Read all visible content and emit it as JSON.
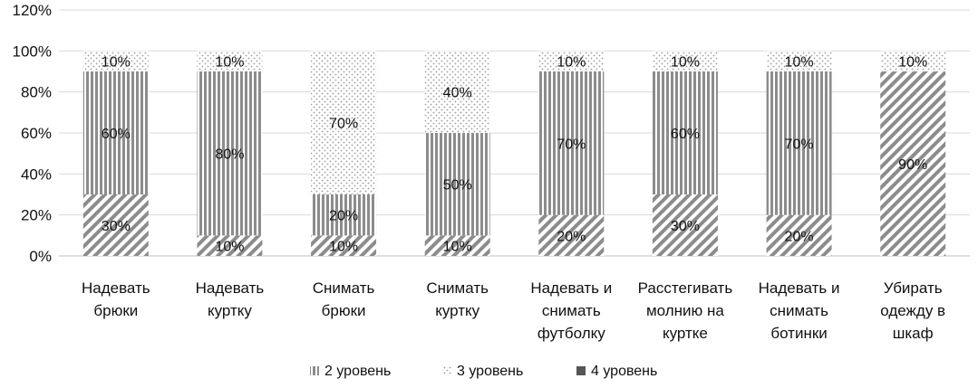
{
  "chart_data": {
    "type": "bar",
    "stacked": true,
    "title": "",
    "xlabel": "",
    "ylabel": "",
    "ylim": [
      0,
      120
    ],
    "y_ticks": [
      "0%",
      "20%",
      "40%",
      "60%",
      "80%",
      "100%",
      "120%"
    ],
    "grid": true,
    "legend_position": "bottom",
    "categories": [
      [
        "Надевать",
        "брюки"
      ],
      [
        "Надевать",
        "куртку"
      ],
      [
        "Снимать",
        "брюки"
      ],
      [
        "Снимать",
        "куртку"
      ],
      [
        "Надевать и",
        "снимать",
        "футболку"
      ],
      [
        "Расстегивать",
        "молнию на",
        "куртке"
      ],
      [
        "Надевать и",
        "снимать",
        "ботинки"
      ],
      [
        "Убирать",
        "одежду в",
        "шкаф"
      ]
    ],
    "series": [
      {
        "key": "s4",
        "values": [
          30,
          10,
          10,
          10,
          20,
          30,
          20,
          90
        ],
        "labels": [
          "30%",
          "10%",
          "10%",
          "10%",
          "20%",
          "30%",
          "20%",
          "90%"
        ],
        "pattern": "diag",
        "color": "#8c8c8c"
      },
      {
        "key": "s2",
        "name": "2 уровень",
        "values": [
          60,
          80,
          20,
          50,
          70,
          60,
          70,
          0
        ],
        "labels": [
          "60%",
          "80%",
          "20%",
          "50%",
          "70%",
          "60%",
          "70%",
          ""
        ],
        "pattern": "vert",
        "color": "#8c8c8c"
      },
      {
        "key": "s3",
        "name": "3 уровень",
        "values": [
          10,
          10,
          70,
          40,
          10,
          10,
          10,
          10
        ],
        "labels": [
          "10%",
          "10%",
          "70%",
          "40%",
          "10%",
          "10%",
          "10%",
          "10%"
        ],
        "pattern": "dots",
        "color": "#8c8c8c"
      }
    ],
    "legend": [
      {
        "label": "2 уровень",
        "pattern": "vert"
      },
      {
        "label": "3 уровень",
        "pattern": "dots"
      },
      {
        "label": "4 уровень",
        "pattern": "solid"
      }
    ]
  }
}
